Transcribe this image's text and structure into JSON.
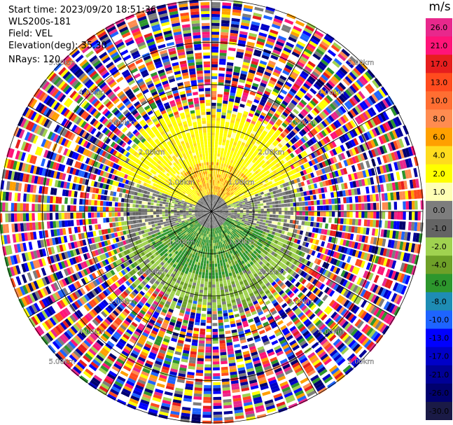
{
  "info": {
    "start_time": "Start time: 2023/09/20 18:51:36",
    "instrument": "WLS200s-181",
    "field": "Field: VEL",
    "elevation": "Elevation(deg): 35.30",
    "nrays": "NRays: 120"
  },
  "colorbar": {
    "unit": "m/s",
    "levels": [
      {
        "label": "26.0",
        "color": "#e8288c"
      },
      {
        "label": "21.0",
        "color": "#ff1478"
      },
      {
        "label": "17.0",
        "color": "#e61e1e"
      },
      {
        "label": "13.0",
        "color": "#ff4b1e"
      },
      {
        "label": "10.0",
        "color": "#ff6e32"
      },
      {
        "label": "8.0",
        "color": "#ff8c50"
      },
      {
        "label": "6.0",
        "color": "#ffa000"
      },
      {
        "label": "4.0",
        "color": "#ffdc1e"
      },
      {
        "label": "2.0",
        "color": "#ffff00"
      },
      {
        "label": "1.0",
        "color": "#ffffb4"
      },
      {
        "label": "0.0",
        "color": "#7d7d7d"
      },
      {
        "label": "-1.0",
        "color": "#646464"
      },
      {
        "label": "-2.0",
        "color": "#a0d250"
      },
      {
        "label": "-4.0",
        "color": "#6ea028"
      },
      {
        "label": "-6.0",
        "color": "#2d962d"
      },
      {
        "label": "-8.0",
        "color": "#1e8cb4"
      },
      {
        "label": "-10.0",
        "color": "#1e64ff"
      },
      {
        "label": "-13.0",
        "color": "#0000ff"
      },
      {
        "label": "-17.0",
        "color": "#0000c8"
      },
      {
        "label": "-21.0",
        "color": "#000096"
      },
      {
        "label": "-26.0",
        "color": "#00006e"
      },
      {
        "label": "-30.0",
        "color": "#1a1a46"
      }
    ]
  },
  "chart_data": {
    "type": "heatmap",
    "field": "VEL",
    "nrays": 120,
    "elevation_deg": 35.3,
    "range_rings_km": [
      1.0,
      2.0,
      3.0,
      4.0,
      5.0
    ],
    "range_labels": [
      "1.00km",
      "2.00km",
      "3.00km",
      "4.00km",
      "5.00km"
    ],
    "spokes_deg": [
      0,
      30,
      60,
      90,
      120,
      150,
      180,
      210,
      240,
      270,
      300,
      330
    ],
    "max_range_km": 5.0,
    "velocity_pattern": {
      "north_sector_m_s": [
        2.0,
        6.0
      ],
      "south_sector_m_s": [
        -6.0,
        -2.0
      ],
      "near_field_m_s": [
        -1.0,
        0.0
      ],
      "noise_beyond_km": 2.2
    }
  }
}
